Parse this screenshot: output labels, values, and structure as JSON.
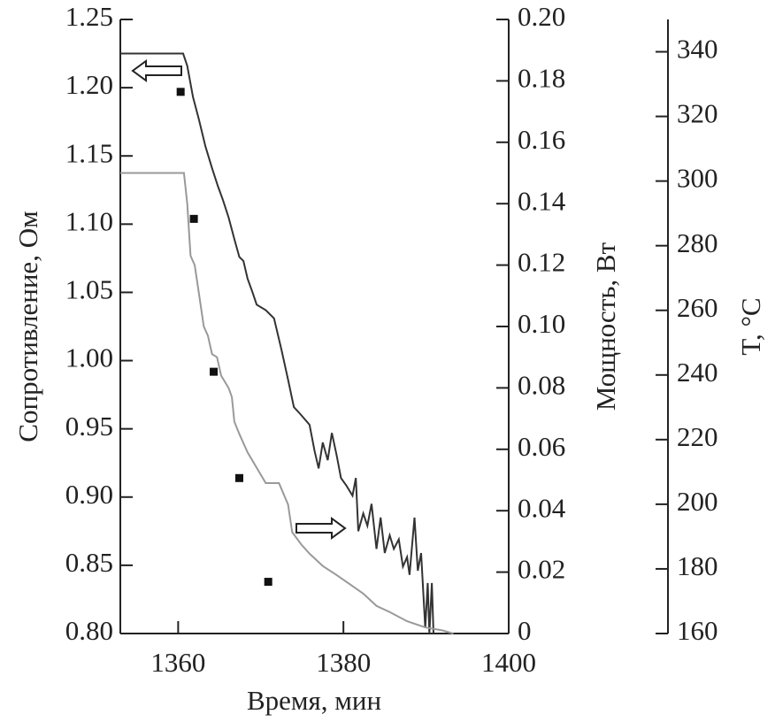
{
  "chart_data": {
    "type": "line",
    "xlabel": "Время, мин",
    "ylabel": "Сопротивление, Ом",
    "y2label": "Мощность, Вт",
    "y3label": "T, °C",
    "xlim": [
      1353,
      1400
    ],
    "xticks": [
      1360,
      1380,
      1400
    ],
    "ylim": [
      0.8,
      1.25
    ],
    "yticks": [
      {
        "value": 0.8,
        "label": "0.80"
      },
      0.85,
      {
        "value": 0.9,
        "label": "0.90"
      },
      0.95,
      {
        "value": 1.0,
        "label": "1.00"
      },
      1.05,
      {
        "value": 1.1,
        "label": "1.10"
      },
      1.15,
      {
        "value": 1.2,
        "label": "1.20"
      },
      1.25
    ],
    "y2lim": [
      0,
      0.2
    ],
    "y2ticks": [
      0,
      0.02,
      0.04,
      0.06,
      0.08,
      {
        "value": 0.1,
        "label": "0.10"
      },
      0.12,
      0.14,
      0.16,
      0.18,
      {
        "value": 0.2,
        "label": "0.20"
      }
    ],
    "y3lim": [
      160,
      350
    ],
    "y3ticks": [
      160,
      180,
      200,
      220,
      240,
      260,
      280,
      300,
      320,
      340
    ],
    "series": [
      {
        "color": "#333333",
        "style": "line",
        "axis": "y",
        "x": [
          1353.0,
          1360.6,
          1361.1,
          1361.8,
          1362.5,
          1363.3,
          1364.1,
          1364.8,
          1365.4,
          1366.1,
          1366.8,
          1367.4,
          1367.9,
          1368.4,
          1369.0,
          1369.5,
          1370.6,
          1371.6,
          1372.5,
          1373.3,
          1374.0,
          1374.9,
          1375.9,
          1376.5,
          1377.0,
          1377.5,
          1378.1,
          1378.6,
          1379.2,
          1379.7,
          1380.4,
          1381.1,
          1381.5,
          1381.8,
          1382.4,
          1382.9,
          1383.4,
          1384.0,
          1384.5,
          1385.0,
          1385.6,
          1386.1,
          1386.7,
          1387.2,
          1387.7,
          1388.0,
          1388.6,
          1389.0,
          1389.4,
          1389.9,
          1390.2,
          1390.4,
          1390.7,
          1390.9
        ],
        "values": [
          1.225,
          1.225,
          1.216,
          1.193,
          1.177,
          1.157,
          1.141,
          1.128,
          1.118,
          1.105,
          1.089,
          1.076,
          1.073,
          1.06,
          1.05,
          1.041,
          1.037,
          1.031,
          1.008,
          0.986,
          0.966,
          0.96,
          0.953,
          0.934,
          0.921,
          0.94,
          0.927,
          0.947,
          0.93,
          0.914,
          0.908,
          0.901,
          0.914,
          0.875,
          0.888,
          0.879,
          0.895,
          0.862,
          0.885,
          0.859,
          0.872,
          0.862,
          0.869,
          0.849,
          0.856,
          0.843,
          0.885,
          0.846,
          0.859,
          0.804,
          0.837,
          0.8,
          0.837,
          0.8
        ]
      },
      {
        "color": "#999999",
        "style": "line",
        "axis": "y2",
        "x": [
          1353.0,
          1360.7,
          1361.1,
          1361.5,
          1362.0,
          1362.5,
          1363.1,
          1363.6,
          1364.1,
          1364.7,
          1365.2,
          1366.1,
          1366.5,
          1366.8,
          1367.4,
          1368.4,
          1369.5,
          1370.6,
          1372.2,
          1373.3,
          1373.8,
          1374.9,
          1375.9,
          1377.5,
          1379.2,
          1380.8,
          1382.4,
          1384.0,
          1385.6,
          1387.7,
          1389.9,
          1392.0,
          1393.3
        ],
        "values": [
          0.15,
          0.15,
          0.14,
          0.123,
          0.12,
          0.111,
          0.1,
          0.097,
          0.091,
          0.09,
          0.084,
          0.08,
          0.077,
          0.069,
          0.065,
          0.059,
          0.054,
          0.049,
          0.049,
          0.042,
          0.033,
          0.029,
          0.026,
          0.022,
          0.019,
          0.016,
          0.013,
          0.009,
          0.007,
          0.004,
          0.002,
          0.001,
          0
        ]
      },
      {
        "color": "#111111",
        "style": "square",
        "axis": "y3",
        "x": [
          1360.3,
          1361.9,
          1364.3,
          1367.4,
          1370.9
        ],
        "values": [
          327.6,
          288.3,
          241.0,
          208.1,
          176.0
        ]
      }
    ]
  }
}
